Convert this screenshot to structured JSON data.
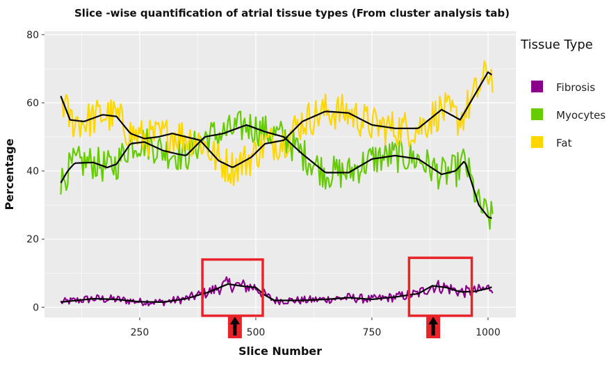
{
  "chart_data": {
    "type": "line",
    "title": "Slice -wise quantification of atrial tissue types (From cluster analysis tab)",
    "xlabel": "Slice Number",
    "ylabel": "Percentage",
    "xlim": [
      45,
      1060
    ],
    "ylim": [
      -3,
      81
    ],
    "xticks": [
      250,
      500,
      750,
      1000
    ],
    "xtick_labels": [
      "250",
      "500",
      "750",
      "1000"
    ],
    "yticks": [
      0,
      20,
      40,
      60,
      80
    ],
    "ytick_labels": [
      "0",
      "20",
      "40",
      "60",
      "80"
    ],
    "grid": true,
    "legend": {
      "title": "Tissue  Type",
      "position": "right",
      "entries": [
        "Fibrosis",
        "Myocytes",
        "Fat"
      ]
    },
    "series": [
      {
        "name": "Fibrosis",
        "color": "#8B008B",
        "smooth": [
          [
            80,
            1.5
          ],
          [
            150,
            2.5
          ],
          [
            200,
            2.3
          ],
          [
            250,
            1.6
          ],
          [
            300,
            1.5
          ],
          [
            350,
            2.5
          ],
          [
            400,
            4.5
          ],
          [
            440,
            6.8
          ],
          [
            470,
            6.2
          ],
          [
            500,
            5.8
          ],
          [
            520,
            3.5
          ],
          [
            540,
            2.0
          ],
          [
            600,
            2.0
          ],
          [
            650,
            2.3
          ],
          [
            700,
            2.8
          ],
          [
            750,
            2.3
          ],
          [
            800,
            3.0
          ],
          [
            850,
            4.0
          ],
          [
            880,
            6.3
          ],
          [
            910,
            5.8
          ],
          [
            940,
            4.5
          ],
          [
            970,
            4.6
          ],
          [
            1000,
            5.5
          ],
          [
            1010,
            6.0
          ]
        ],
        "noise": 2.2
      },
      {
        "name": "Myocytes",
        "color": "#66CC00",
        "smooth": [
          [
            80,
            36.5
          ],
          [
            95,
            40
          ],
          [
            110,
            42.3
          ],
          [
            150,
            42.5
          ],
          [
            180,
            41
          ],
          [
            200,
            42
          ],
          [
            230,
            48
          ],
          [
            260,
            48.5
          ],
          [
            300,
            46
          ],
          [
            330,
            45
          ],
          [
            350,
            44.5
          ],
          [
            390,
            50
          ],
          [
            430,
            51
          ],
          [
            480,
            53.5
          ],
          [
            520,
            51.5
          ],
          [
            560,
            50
          ],
          [
            600,
            45
          ],
          [
            650,
            39.5
          ],
          [
            700,
            39.5
          ],
          [
            750,
            43.5
          ],
          [
            800,
            44.5
          ],
          [
            850,
            43.5
          ],
          [
            900,
            39
          ],
          [
            930,
            40
          ],
          [
            950,
            43
          ],
          [
            980,
            30
          ],
          [
            1000,
            26.5
          ],
          [
            1010,
            26
          ]
        ],
        "noise": 5.0
      },
      {
        "name": "Fat",
        "color": "#FFD700",
        "smooth": [
          [
            80,
            62
          ],
          [
            100,
            55
          ],
          [
            130,
            54.5
          ],
          [
            170,
            56.5
          ],
          [
            200,
            56
          ],
          [
            230,
            51
          ],
          [
            260,
            49.5
          ],
          [
            290,
            50
          ],
          [
            320,
            51
          ],
          [
            350,
            50
          ],
          [
            380,
            49
          ],
          [
            420,
            43
          ],
          [
            450,
            41
          ],
          [
            490,
            44
          ],
          [
            520,
            48
          ],
          [
            560,
            49
          ],
          [
            600,
            54.5
          ],
          [
            650,
            57.5
          ],
          [
            700,
            57
          ],
          [
            750,
            53.5
          ],
          [
            800,
            52.5
          ],
          [
            850,
            52.5
          ],
          [
            900,
            58
          ],
          [
            940,
            55
          ],
          [
            970,
            62
          ],
          [
            1000,
            69
          ],
          [
            1010,
            68
          ]
        ],
        "noise": 5.5
      }
    ],
    "highlights": [
      {
        "x_range": [
          385,
          515
        ],
        "y_range": [
          -2.5,
          14
        ]
      },
      {
        "x_range": [
          830,
          965
        ],
        "y_range": [
          -2.5,
          14.5
        ]
      }
    ],
    "arrows": [
      {
        "x": 455
      },
      {
        "x": 882
      }
    ],
    "colors": {
      "panel": "#EBEBEB",
      "grid": "#FFFFFF",
      "smooth_line": "#000000",
      "highlight": "#E8232A"
    }
  }
}
